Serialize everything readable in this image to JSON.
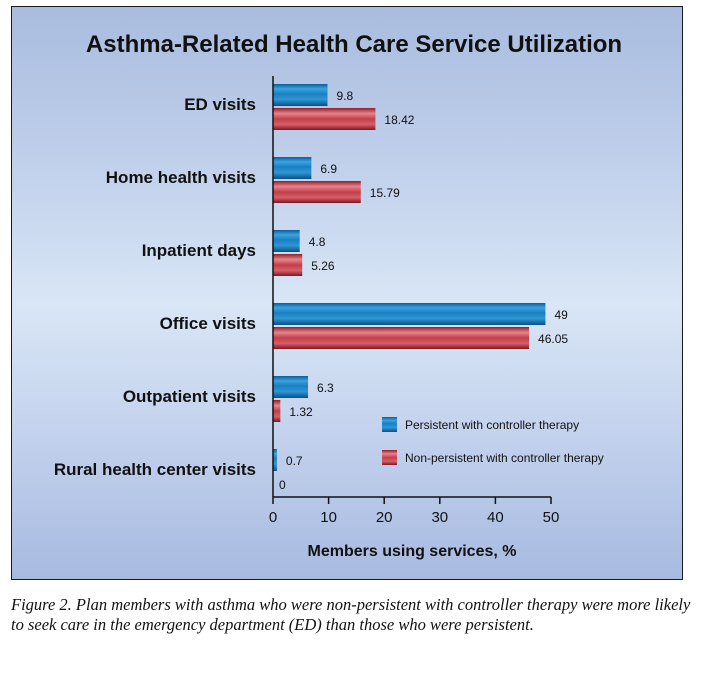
{
  "chart_data": {
    "type": "bar",
    "orientation": "horizontal",
    "title": "Asthma-Related Health Care Service Utilization",
    "xlabel": "Members using services, %",
    "ylabel": "",
    "xlim": [
      0,
      50
    ],
    "xticks": [
      0,
      10,
      20,
      30,
      40,
      50
    ],
    "grid": false,
    "legend_position": "bottom-right",
    "categories": [
      "ED visits",
      "Home health visits",
      "Inpatient days",
      "Office visits",
      "Outpatient visits",
      "Rural health center visits"
    ],
    "series": [
      {
        "name": "Persistent with controller therapy",
        "color": "#1f86c4",
        "values": [
          9.8,
          6.9,
          4.8,
          49,
          6.3,
          0.7
        ],
        "value_labels": [
          "9.8",
          "6.9",
          "4.8",
          "49",
          "6.3",
          "0.7"
        ]
      },
      {
        "name": "Non-persistent with controller therapy",
        "color": "#c33a44",
        "values": [
          18.42,
          15.79,
          5.26,
          46.05,
          1.32,
          0
        ],
        "value_labels": [
          "18.42",
          "15.79",
          "5.26",
          "46.05",
          "1.32",
          "0"
        ]
      }
    ]
  },
  "caption": "Figure 2. Plan members with asthma who were non-persistent with controller therapy were more likely to seek care in the emergency department (ED) than those who were persistent."
}
